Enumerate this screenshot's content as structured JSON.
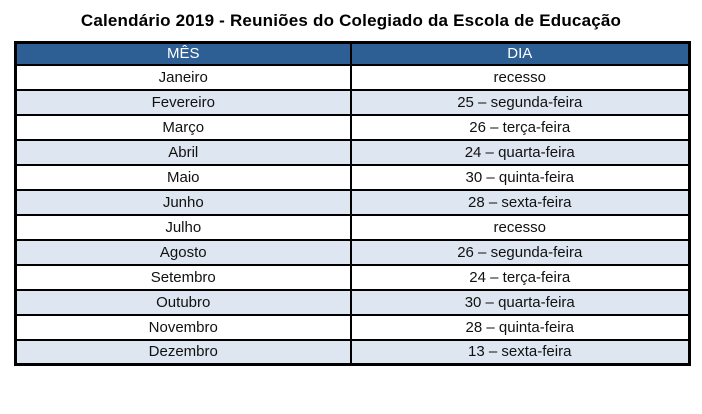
{
  "title": "Calendário 2019 - Reuniões do Colegiado da Escola de Educação",
  "table": {
    "columns": [
      "MÊS",
      "DIA"
    ],
    "rows": [
      {
        "mes": "Janeiro",
        "dia": "recesso"
      },
      {
        "mes": "Fevereiro",
        "dia": "25 – segunda-feira"
      },
      {
        "mes": "Março",
        "dia": "26 – terça-feira"
      },
      {
        "mes": "Abril",
        "dia": "24 – quarta-feira"
      },
      {
        "mes": "Maio",
        "dia": "30 – quinta-feira"
      },
      {
        "mes": "Junho",
        "dia": "28 – sexta-feira"
      },
      {
        "mes": "Julho",
        "dia": "recesso"
      },
      {
        "mes": "Agosto",
        "dia": "26 – segunda-feira"
      },
      {
        "mes": "Setembro",
        "dia": "24 – terça-feira"
      },
      {
        "mes": "Outubro",
        "dia": "30 – quarta-feira"
      },
      {
        "mes": "Novembro",
        "dia": "28 – quinta-feira"
      },
      {
        "mes": "Dezembro",
        "dia": "13 – sexta-feira"
      }
    ]
  },
  "colors": {
    "header_bg": "#2D5F95",
    "header_text": "#FFFFFF",
    "row_bg": "#FFFFFF",
    "row_alt_bg": "#DEE6F1",
    "border": "#000000",
    "text": "#111111"
  }
}
